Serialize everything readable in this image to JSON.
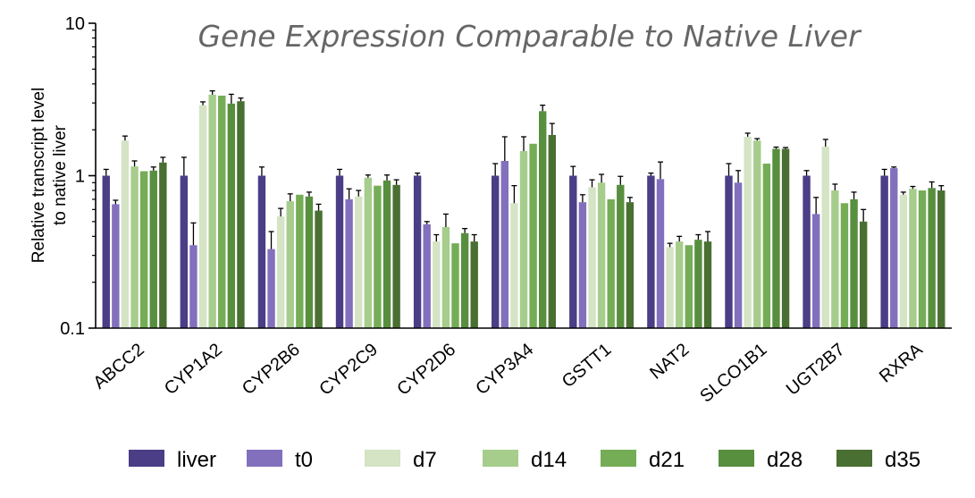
{
  "chart_data": {
    "type": "bar",
    "title": "Gene Expression Comparable to Native Liver",
    "ylabel": [
      "Relative transcript level",
      "to native liver"
    ],
    "xlabel": "",
    "yscale": "log",
    "ylim": [
      0.1,
      10
    ],
    "yticks": [
      0.1,
      1,
      10
    ],
    "ytick_labels": [
      "0.1",
      "1",
      "10"
    ],
    "legend_position": "bottom",
    "grid": false,
    "categories": [
      "ABCC2",
      "CYP1A2",
      "CYP2B6",
      "CYP2C9",
      "CYP2D6",
      "CYP3A4",
      "GSTT1",
      "NAT2",
      "SLCO1B1",
      "UGT2B7",
      "RXRA"
    ],
    "series": [
      {
        "name": "liver",
        "color": "#4b3d86",
        "values": [
          1.0,
          1.0,
          1.0,
          1.0,
          1.0,
          1.0,
          1.0,
          1.0,
          1.0,
          1.0,
          1.0
        ],
        "errors": [
          0.1,
          0.32,
          0.14,
          0.1,
          0.04,
          0.2,
          0.15,
          0.04,
          0.2,
          0.08,
          0.1
        ]
      },
      {
        "name": "t0",
        "color": "#8270bd",
        "values": [
          0.65,
          0.35,
          0.33,
          0.7,
          0.48,
          1.25,
          0.67,
          0.95,
          0.9,
          0.56,
          1.12
        ],
        "errors": [
          0.04,
          0.14,
          0.1,
          0.12,
          0.02,
          0.55,
          0.08,
          0.28,
          0.18,
          0.16,
          0.02
        ]
      },
      {
        "name": "d7",
        "color": "#d4e4c4",
        "values": [
          1.7,
          2.9,
          0.54,
          0.73,
          0.37,
          0.66,
          0.84,
          0.34,
          1.8,
          1.55,
          0.75
        ],
        "errors": [
          0.12,
          0.15,
          0.07,
          0.07,
          0.04,
          0.2,
          0.1,
          0.02,
          0.1,
          0.18,
          0.03
        ]
      },
      {
        "name": "d14",
        "color": "#a6cd8c",
        "values": [
          1.15,
          3.4,
          0.68,
          0.97,
          0.46,
          1.45,
          0.9,
          0.37,
          1.7,
          0.8,
          0.82
        ],
        "errors": [
          0.1,
          0.2,
          0.08,
          0.04,
          0.1,
          0.35,
          0.12,
          0.03,
          0.05,
          0.08,
          0.03
        ]
      },
      {
        "name": "d21",
        "color": "#74ad55",
        "values": [
          1.07,
          3.35,
          0.75,
          0.86,
          0.36,
          1.62,
          0.7,
          0.35,
          1.2,
          0.66,
          0.8
        ]
      },
      {
        "name": "d28",
        "color": "#578f3e",
        "values": [
          1.08,
          2.97,
          0.73,
          0.93,
          0.42,
          2.65,
          0.87,
          0.38,
          1.5,
          0.7,
          0.83
        ],
        "errors": [
          0.06,
          0.45,
          0.05,
          0.08,
          0.03,
          0.25,
          0.12,
          0.03,
          0.04,
          0.08,
          0.08
        ]
      },
      {
        "name": "d35",
        "color": "#4a6f32",
        "values": [
          1.22,
          3.08,
          0.59,
          0.87,
          0.37,
          1.85,
          0.67,
          0.37,
          1.5,
          0.5,
          0.8
        ],
        "errors": [
          0.1,
          0.15,
          0.06,
          0.07,
          0.04,
          0.35,
          0.05,
          0.06,
          0.03,
          0.1,
          0.06
        ]
      }
    ]
  }
}
